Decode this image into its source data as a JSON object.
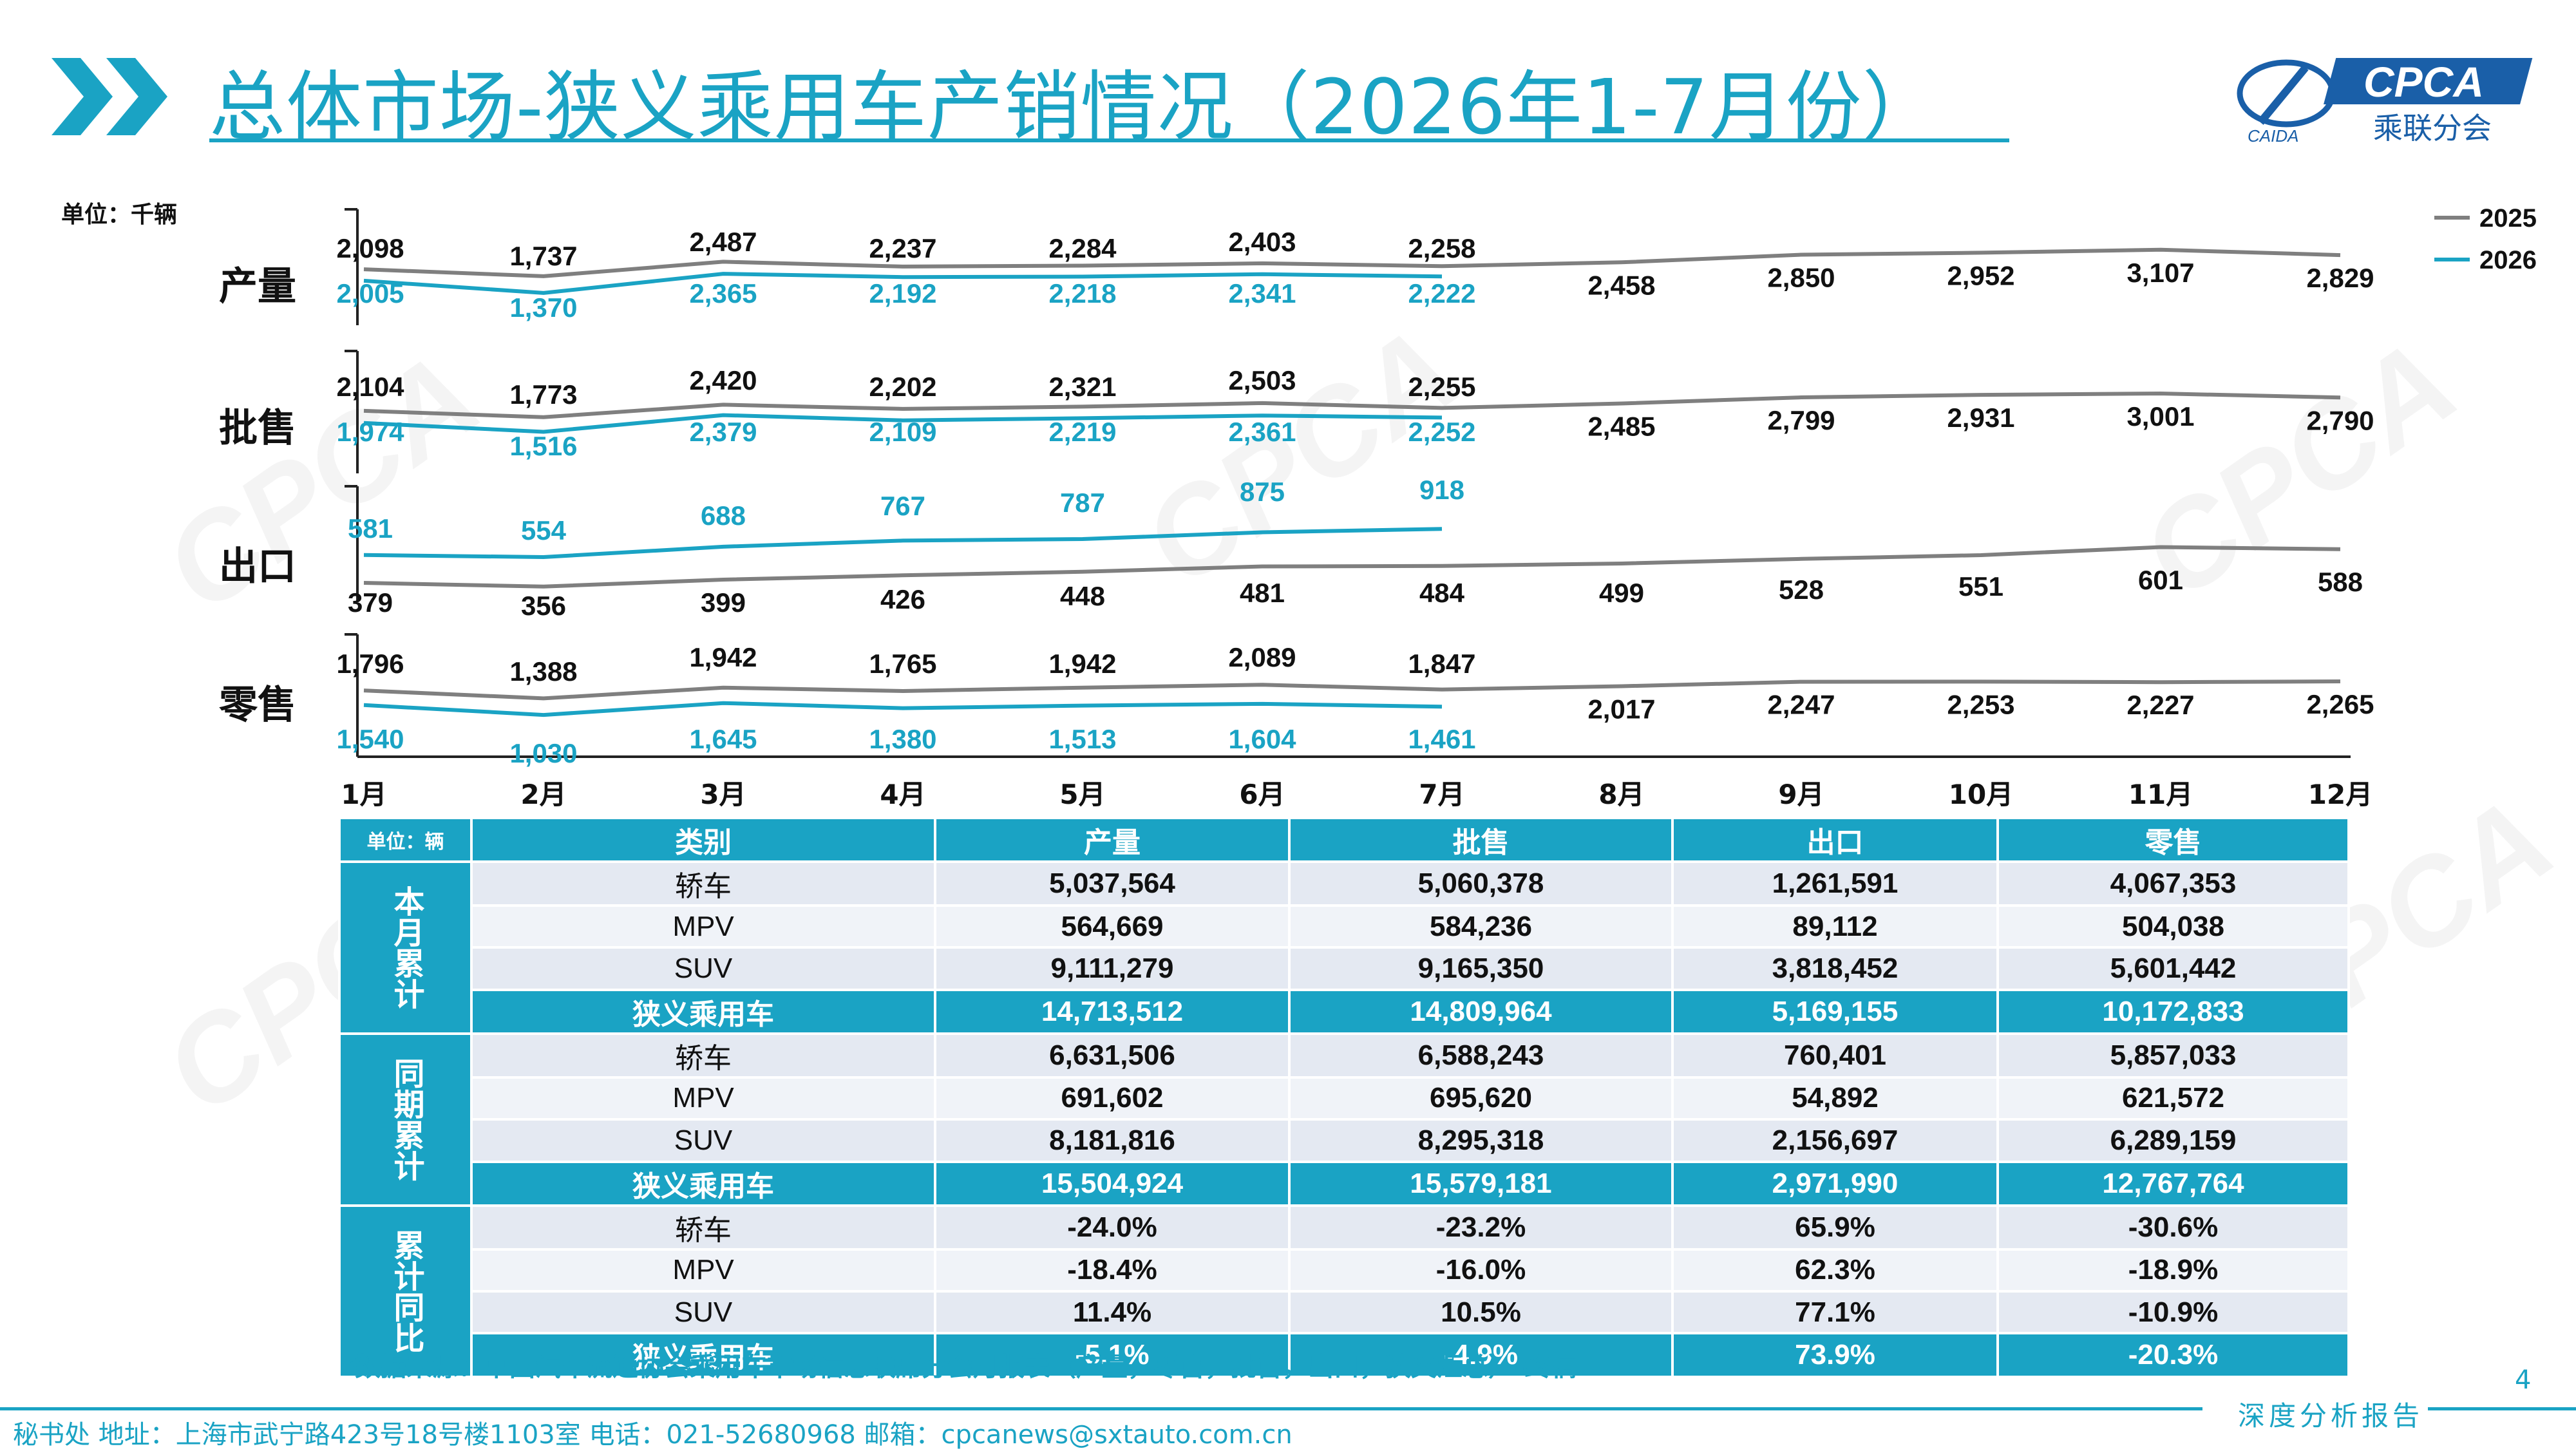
{
  "title": "总体市场-狭义乘用车产销情况（2026年1-7月份）",
  "logo": {
    "brand": "CPCA",
    "sub": "乘联分会",
    "small": "CAIDA"
  },
  "watermark_text": "CPCA",
  "chart_data": {
    "type": "line",
    "unit_label": "单位：千辆",
    "categories": [
      "1月",
      "2月",
      "3月",
      "4月",
      "5月",
      "6月",
      "7月",
      "8月",
      "9月",
      "10月",
      "11月",
      "12月"
    ],
    "legend": [
      "2025",
      "2026"
    ],
    "colors": {
      "2025": "#7f7f7f",
      "2026": "#1aa3c4"
    },
    "panels": [
      {
        "name": "产量",
        "series": [
          {
            "name": "2025",
            "values": [
              2098,
              1737,
              2487,
              2237,
              2284,
              2403,
              2258,
              2458,
              2850,
              2952,
              3107,
              2829
            ]
          },
          {
            "name": "2026",
            "values": [
              2005,
              1370,
              2365,
              2192,
              2218,
              2341,
              2222
            ]
          }
        ]
      },
      {
        "name": "批售",
        "series": [
          {
            "name": "2025",
            "values": [
              2104,
              1773,
              2420,
              2202,
              2321,
              2503,
              2255,
              2485,
              2799,
              2931,
              3001,
              2790
            ]
          },
          {
            "name": "2026",
            "values": [
              1974,
              1516,
              2379,
              2109,
              2219,
              2361,
              2252
            ]
          }
        ]
      },
      {
        "name": "出口",
        "series": [
          {
            "name": "2025",
            "values": [
              379,
              356,
              399,
              426,
              448,
              481,
              484,
              499,
              528,
              551,
              601,
              588
            ]
          },
          {
            "name": "2026",
            "values": [
              581,
              554,
              688,
              767,
              787,
              875,
              918
            ]
          }
        ]
      },
      {
        "name": "零售",
        "series": [
          {
            "name": "2025",
            "values": [
              1796,
              1388,
              1942,
              1765,
              1942,
              2089,
              1847,
              2017,
              2247,
              2253,
              2227,
              2265
            ]
          },
          {
            "name": "2026",
            "values": [
              1540,
              1030,
              1645,
              1380,
              1513,
              1604,
              1461
            ]
          }
        ]
      }
    ]
  },
  "table": {
    "unit_label": "单位：辆",
    "headers": [
      "类别",
      "产量",
      "批售",
      "出口",
      "零售"
    ],
    "groups": [
      {
        "name": "本月累计",
        "rows": [
          {
            "cat": "轿车",
            "vals": [
              "5,037,564",
              "5,060,378",
              "1,261,591",
              "4,067,353"
            ]
          },
          {
            "cat": "MPV",
            "vals": [
              "564,669",
              "584,236",
              "89,112",
              "504,038"
            ]
          },
          {
            "cat": "SUV",
            "vals": [
              "9,111,279",
              "9,165,350",
              "3,818,452",
              "5,601,442"
            ]
          },
          {
            "cat": "狭义乘用车",
            "vals": [
              "14,713,512",
              "14,809,964",
              "5,169,155",
              "10,172,833"
            ]
          }
        ]
      },
      {
        "name": "同期累计",
        "rows": [
          {
            "cat": "轿车",
            "vals": [
              "6,631,506",
              "6,588,243",
              "760,401",
              "5,857,033"
            ]
          },
          {
            "cat": "MPV",
            "vals": [
              "691,602",
              "695,620",
              "54,892",
              "621,572"
            ]
          },
          {
            "cat": "SUV",
            "vals": [
              "8,181,816",
              "8,295,318",
              "2,156,697",
              "6,289,159"
            ]
          },
          {
            "cat": "狭义乘用车",
            "vals": [
              "15,504,924",
              "15,579,181",
              "2,971,990",
              "12,767,764"
            ]
          }
        ]
      },
      {
        "name": "累计同比",
        "rows": [
          {
            "cat": "轿车",
            "vals": [
              "-24.0%",
              "-23.2%",
              "65.9%",
              "-30.6%"
            ]
          },
          {
            "cat": "MPV",
            "vals": [
              "-18.4%",
              "-16.0%",
              "62.3%",
              "-18.9%"
            ]
          },
          {
            "cat": "SUV",
            "vals": [
              "11.4%",
              "10.5%",
              "77.1%",
              "-10.9%"
            ]
          },
          {
            "cat": "狭义乘用车",
            "vals": [
              "-5.1%",
              "-4.9%",
              "73.9%",
              "-20.3%"
            ]
          }
        ]
      }
    ]
  },
  "source_note": "*数据来源：中国汽车流通协会乘用车市场信息联席分会月报表（产量，零售，批售，出口，狭义汇总）-终稿",
  "page_number": "4",
  "footer": {
    "contact": "秘书处   地址：上海市武宁路423号18号楼1103室   电话：021-52680968    邮箱：cpcanews@sxtauto.com.cn",
    "badge": "深度分析报告"
  }
}
